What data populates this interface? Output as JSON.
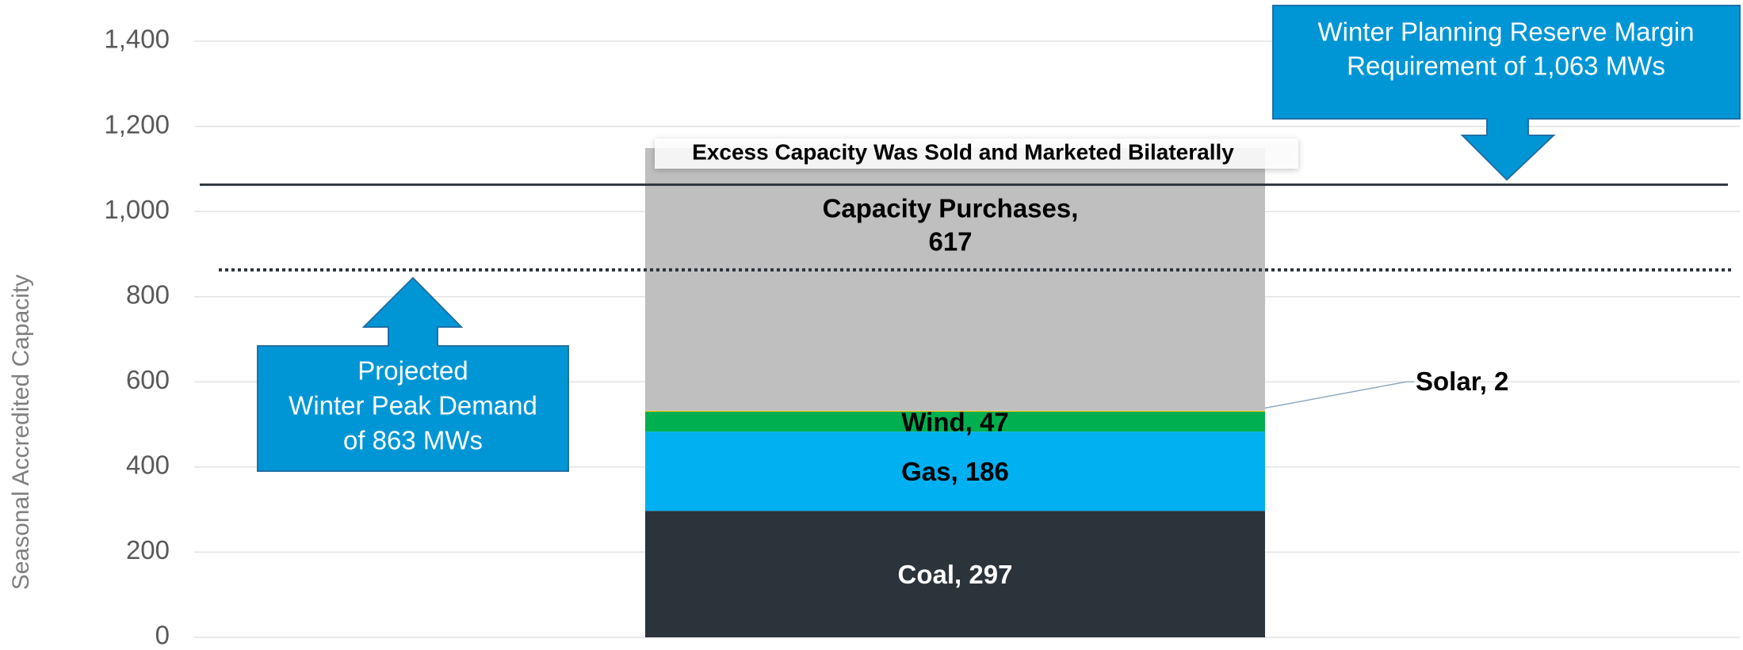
{
  "chart_data": {
    "type": "stacked_bar",
    "y_label": "Seasonal Accredited Capacity",
    "categories": [
      null
    ],
    "series": [
      {
        "name": "Coal",
        "color": "#2b333b",
        "label_color": "#ffffff",
        "values": [
          297
        ],
        "value_labels": [
          "Coal, 297"
        ]
      },
      {
        "name": "Gas",
        "color": "#00b0f0",
        "label_color": "#000000",
        "values": [
          186
        ],
        "value_labels": [
          "Gas, 186"
        ]
      },
      {
        "name": "Wind",
        "color": "#00b050",
        "label_color": "#000000",
        "values": [
          47
        ],
        "value_labels": [
          "Wind, 47"
        ]
      },
      {
        "name": "Solar",
        "color": "#ffc000",
        "label_color": "#000000",
        "values": [
          2
        ],
        "value_labels": [
          "Solar, 2"
        ]
      },
      {
        "name": "Capacity Purchases",
        "color": "#bfbfbf",
        "label_color": "#000000",
        "values": [
          617
        ],
        "value_labels": [
          [
            "Capacity Purchases,",
            "617"
          ]
        ]
      }
    ],
    "ylim": [
      0,
      1400
    ],
    "yticks": [
      0,
      200,
      400,
      600,
      800,
      {
        "value": 1000,
        "label": "1,000"
      },
      {
        "value": 1200,
        "label": "1,200"
      },
      {
        "value": 1400,
        "label": "1,400"
      }
    ],
    "grid": true,
    "reference_lines": [
      {
        "value": 1063,
        "style": "solid",
        "color": "#2b333b"
      },
      {
        "value": 863,
        "style": "dotted",
        "color": "#2b333b"
      }
    ],
    "annotations": {
      "bar_note": "Excess Capacity Was Sold and Marketed Bilaterally",
      "reserve_margin": [
        "Winter Planning Reserve Margin",
        "Requirement of 1,063 MWs"
      ],
      "peak_demand": [
        "Projected",
        "Winter Peak Demand",
        "of 863 MWs"
      ]
    }
  }
}
